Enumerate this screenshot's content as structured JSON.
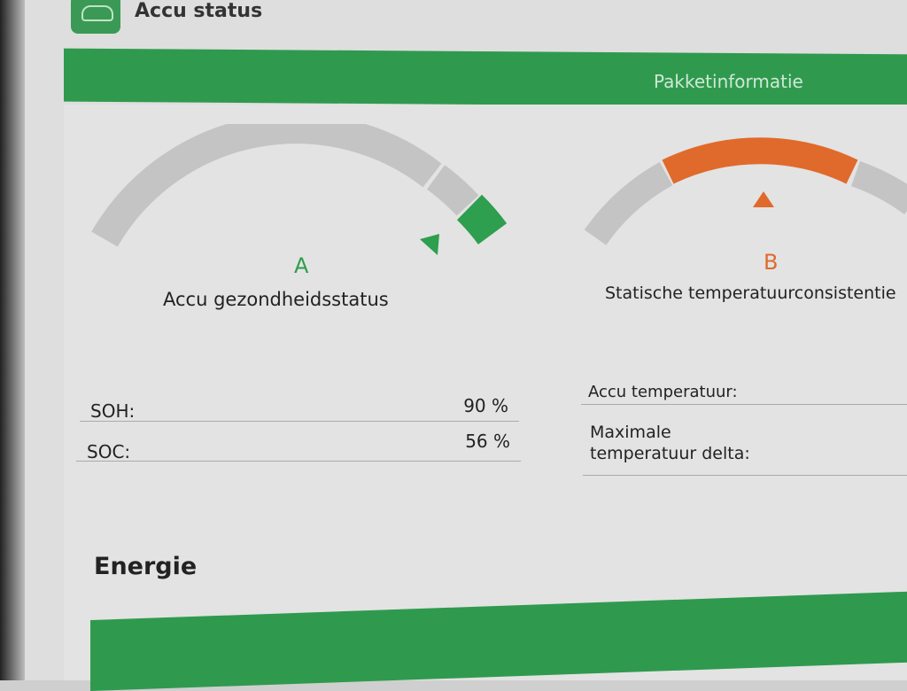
{
  "header": {
    "title": "Accu status",
    "app_icon": "car-battery-icon"
  },
  "band": {
    "label": "Pakketinformatie"
  },
  "gauges": [
    {
      "grade": "A",
      "title": "Accu gezondheidsstatus",
      "color": "#2e9e4f"
    },
    {
      "grade": "B",
      "title": "Statische temperatuurconsistentie",
      "color": "#e06a2c"
    }
  ],
  "left_table": [
    {
      "label": "SOH:",
      "value": "90 %"
    },
    {
      "label": "SOC:",
      "value": "56 %"
    }
  ],
  "right_table": [
    {
      "label": "Accu temperatuur:"
    },
    {
      "label_line1": "Maximale",
      "label_line2": "temperatuur delta:"
    }
  ],
  "section": {
    "title": "Energie"
  },
  "colors": {
    "accent": "#2f9a4e",
    "warning": "#e06a2c",
    "gauge_gray": "#c4c4c4"
  }
}
